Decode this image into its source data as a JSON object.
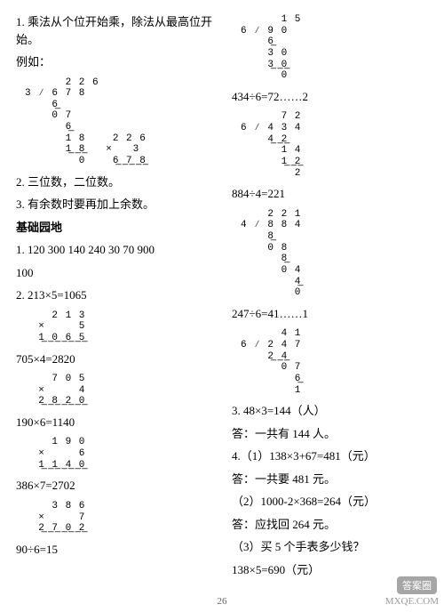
{
  "left": {
    "p1": "1. 乘法从个位开始乘，除法从最高位开始。",
    "p2": "例如：",
    "ld1": "      2 2 6\n3 ∕ 6 7 8\n    6̲    \n    0 7\n      6̲\n      1 8    2 2 6\n      1̲ ̲8̲   ×   3\n        0    6̲ ̲7̲ ̲8̲",
    "p3": "2. 三位数，二位数。",
    "p4": "3. 有余数时要再加上余数。",
    "h1": "基础园地",
    "p5": "1. 120   300   140   240   30   70   900",
    "p6": "100",
    "p7": "2. 213×5=1065",
    "ld2": "    2 1 3\n  ×     5\n  1̲ ̲0̲ ̲6̲ ̲5̲",
    "p8": "705×4=2820",
    "ld3": "    7 0 5\n  ×     4\n  2̲ ̲8̲ ̲2̲ ̲0̲",
    "p9": "190×6=1140",
    "ld4": "    1 9 0\n  ×     6\n  1̲ ̲1̲ ̲4̲ ̲0̲",
    "p10": "386×7=2702",
    "ld5": "    3 8 6\n  ×     7\n  2̲ ̲7̲ ̲0̲ ̲2̲",
    "p11": "90÷6=15"
  },
  "right": {
    "ld6": "      1 5\n6 ∕ 9 0\n    6̲  \n    3 0\n    3̲ ̲0̲\n      0",
    "p12": "434÷6=72……2",
    "ld7": "      7 2\n6 ∕ 4 3 4\n    4̲ ̲2̲  \n      1 4\n      1̲ ̲2̲\n        2",
    "p13": "884÷4=221",
    "ld8": "    2 2 1\n4 ∕ 8 8 4\n    8̲    \n    0 8\n      8̲\n      0 4\n        4̲\n        0",
    "p14": "247÷6=41……1",
    "ld9": "      4 1\n6 ∕ 2 4 7\n    2̲ ̲4̲  \n      0 7\n        6̲\n        1",
    "p15": "3. 48×3=144（人）",
    "p16": "答：一共有 144 人。",
    "p17": "4.（1）138×3+67=481（元）",
    "p18": "答：一共要 481 元。",
    "p19": "（2）1000-2×368=264（元）",
    "p20": "答：应找回 264 元。",
    "p21": "（3）买 5 个手表多少钱？",
    "p22": "138×5=690（元）"
  },
  "pageNum": "26",
  "wmBadge": "答案圈",
  "wmText": "MXQE.COM"
}
